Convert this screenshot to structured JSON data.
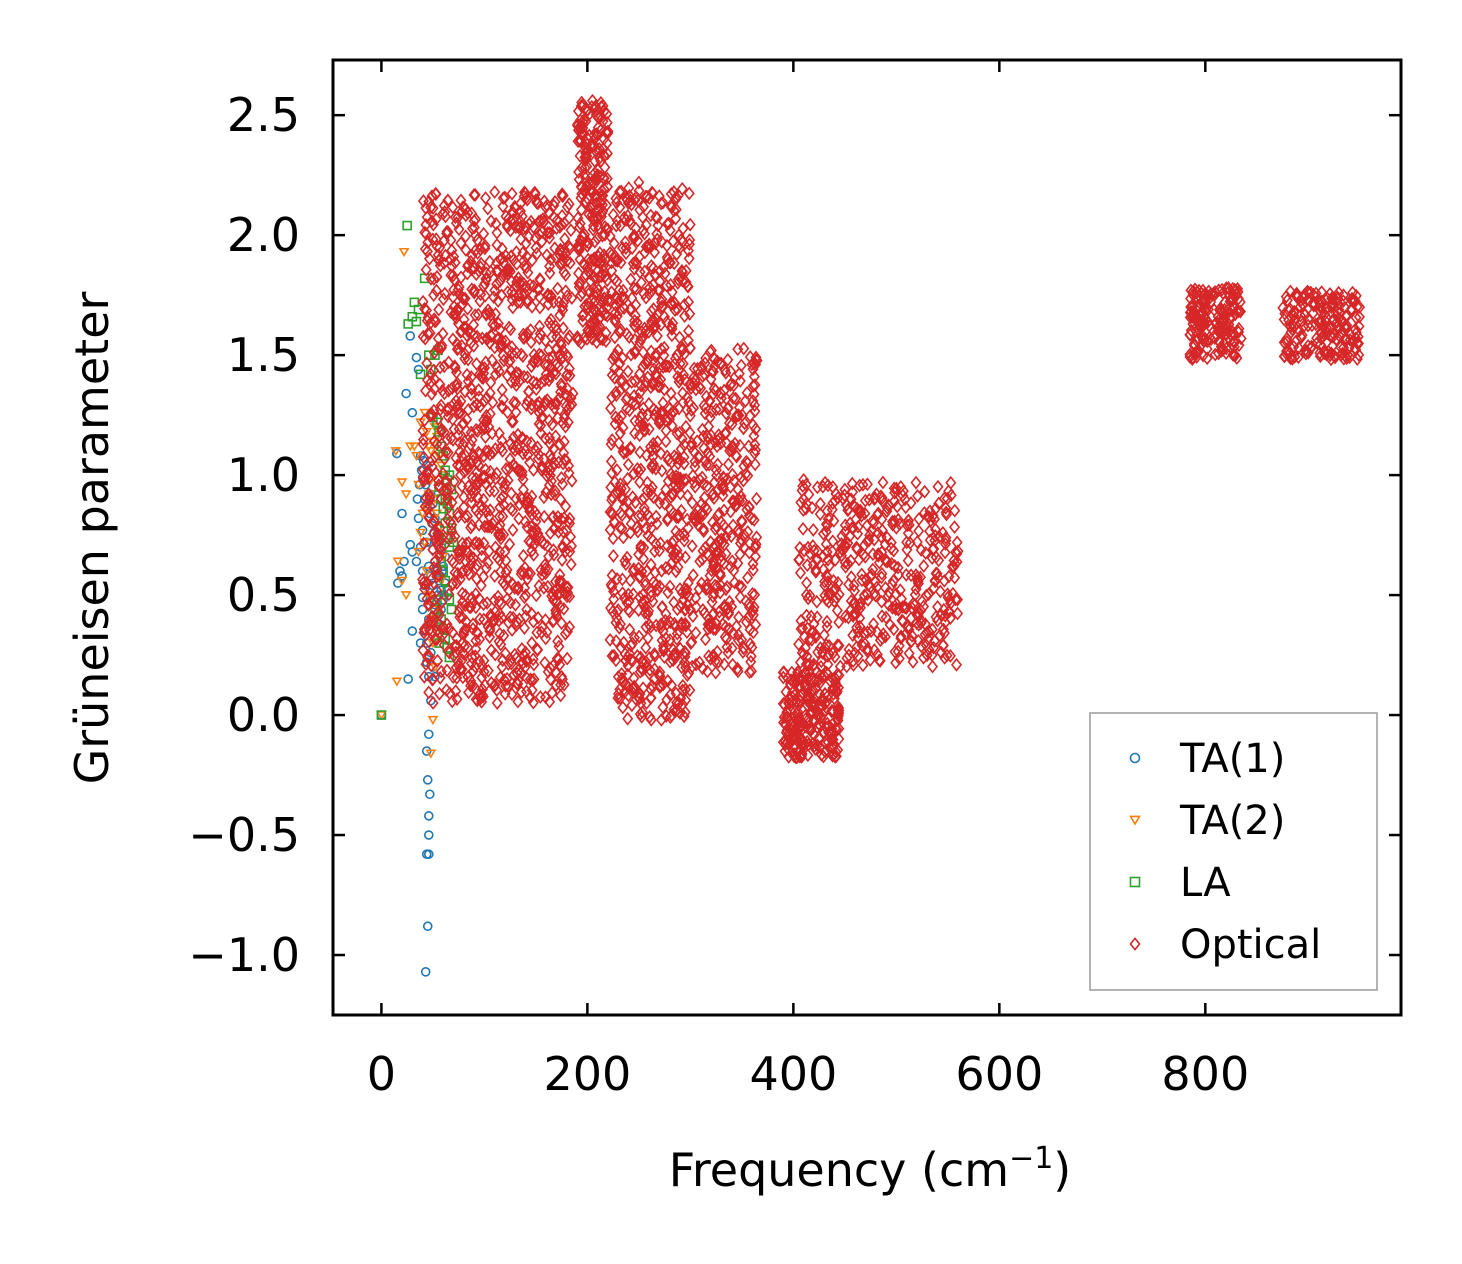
{
  "chart_data": {
    "type": "scatter",
    "title": "",
    "xlabel": "Frequency (cm",
    "xlabel_superscript": "−1",
    "xlabel_suffix": ")",
    "ylabel": "Grüneisen parameter",
    "xlim": [
      -47,
      990
    ],
    "ylim": [
      -1.25,
      2.73
    ],
    "grid": false,
    "legend_position": "lower-right",
    "xticks": [
      0,
      200,
      400,
      600,
      800
    ],
    "xtick_labels": [
      "0",
      "200",
      "400",
      "600",
      "800"
    ],
    "yticks": [
      -1.0,
      -0.5,
      0.0,
      0.5,
      1.0,
      1.5,
      2.0,
      2.5
    ],
    "ytick_labels": [
      "−1.0",
      "−0.5",
      "0.0",
      "0.5",
      "1.0",
      "1.5",
      "2.0",
      "2.5"
    ],
    "series": [
      {
        "name": "TA(1)",
        "marker": "circle",
        "color": "#1f77b4",
        "points": [
          [
            0,
            0
          ],
          [
            15,
            1.09
          ],
          [
            20,
            0.84
          ],
          [
            22,
            0.64
          ],
          [
            16,
            0.55
          ],
          [
            18,
            0.6
          ],
          [
            20,
            0.58
          ],
          [
            24,
            1.34
          ],
          [
            28,
            1.58
          ],
          [
            30,
            1.26
          ],
          [
            34,
            1.49
          ],
          [
            36,
            1.44
          ],
          [
            28,
            0.71
          ],
          [
            30,
            0.68
          ],
          [
            34,
            0.64
          ],
          [
            38,
            1.08
          ],
          [
            40,
            0.99
          ],
          [
            40,
            0.77
          ],
          [
            40,
            0.6
          ],
          [
            40,
            0.49
          ],
          [
            42,
            0.35
          ],
          [
            44,
            0.22
          ],
          [
            46,
            0.16
          ],
          [
            48,
            0.06
          ],
          [
            46,
            -0.08
          ],
          [
            44,
            -0.15
          ],
          [
            45,
            -0.27
          ],
          [
            47,
            -0.33
          ],
          [
            46,
            -0.42
          ],
          [
            46,
            -0.5
          ],
          [
            44,
            -0.58
          ],
          [
            46,
            -0.58
          ],
          [
            45,
            -0.88
          ],
          [
            43,
            -1.07
          ],
          [
            26,
            0.15
          ],
          [
            30,
            0.35
          ],
          [
            36,
            0.82
          ],
          [
            38,
            0.7
          ],
          [
            42,
            0.9
          ],
          [
            44,
            1.04
          ],
          [
            48,
            0.92
          ],
          [
            50,
            0.88
          ],
          [
            52,
            0.82
          ],
          [
            54,
            0.78
          ],
          [
            56,
            0.74
          ],
          [
            58,
            0.7
          ],
          [
            50,
            0.69
          ],
          [
            52,
            0.64
          ],
          [
            54,
            0.6
          ],
          [
            56,
            0.56
          ],
          [
            58,
            0.52
          ],
          [
            60,
            0.48
          ],
          [
            62,
            0.55
          ],
          [
            48,
            0.58
          ],
          [
            50,
            0.54
          ],
          [
            52,
            0.46
          ],
          [
            54,
            0.42
          ],
          [
            56,
            0.38
          ],
          [
            58,
            0.44
          ],
          [
            60,
            0.62
          ],
          [
            62,
            0.66
          ],
          [
            46,
            0.4
          ],
          [
            44,
            0.3
          ],
          [
            48,
            0.26
          ],
          [
            50,
            0.2
          ],
          [
            52,
            0.16
          ],
          [
            44,
            0.72
          ],
          [
            46,
            0.62
          ],
          [
            42,
            0.54
          ],
          [
            40,
            0.44
          ],
          [
            38,
            0.3
          ],
          [
            55,
            0.5
          ],
          [
            57,
            0.58
          ],
          [
            59,
            0.6
          ],
          [
            61,
            0.5
          ],
          [
            53,
            0.72
          ],
          [
            51,
            0.76
          ],
          [
            49,
            0.8
          ],
          [
            47,
            0.84
          ],
          [
            45,
            0.88
          ],
          [
            43,
            0.96
          ],
          [
            41,
            1.06
          ],
          [
            39,
            1.02
          ],
          [
            37,
            0.96
          ],
          [
            35,
            0.9
          ]
        ]
      },
      {
        "name": "TA(2)",
        "marker": "triangle-down",
        "color": "#ff7f0e",
        "points": [
          [
            0,
            0
          ],
          [
            22,
            1.93
          ],
          [
            14,
            1.1
          ],
          [
            20,
            0.97
          ],
          [
            24,
            0.92
          ],
          [
            28,
            1.12
          ],
          [
            32,
            1.12
          ],
          [
            34,
            1.08
          ],
          [
            36,
            0.96
          ],
          [
            38,
            1.22
          ],
          [
            42,
            1.26
          ],
          [
            44,
            1.18
          ],
          [
            46,
            1.12
          ],
          [
            48,
            1.1
          ],
          [
            50,
            1.14
          ],
          [
            52,
            1.2
          ],
          [
            54,
            1.16
          ],
          [
            56,
            1.08
          ],
          [
            58,
            1.04
          ],
          [
            60,
            1.0
          ],
          [
            16,
            0.64
          ],
          [
            20,
            0.56
          ],
          [
            24,
            0.5
          ],
          [
            15,
            0.14
          ],
          [
            42,
            0.72
          ],
          [
            44,
            0.6
          ],
          [
            46,
            0.5
          ],
          [
            48,
            0.4
          ],
          [
            50,
            0.3
          ],
          [
            52,
            0.2
          ],
          [
            50,
            -0.02
          ],
          [
            48,
            -0.16
          ],
          [
            54,
            0.34
          ],
          [
            56,
            0.44
          ],
          [
            58,
            0.56
          ],
          [
            60,
            0.66
          ],
          [
            40,
            0.84
          ],
          [
            38,
            0.76
          ],
          [
            36,
            0.68
          ],
          [
            44,
            0.86
          ],
          [
            46,
            0.92
          ],
          [
            48,
            0.98
          ],
          [
            52,
            0.9
          ],
          [
            54,
            0.84
          ],
          [
            56,
            0.78
          ],
          [
            58,
            0.72
          ]
        ]
      },
      {
        "name": "LA",
        "marker": "square",
        "color": "#2ca02c",
        "points": [
          [
            0,
            0
          ],
          [
            25,
            2.04
          ],
          [
            42,
            1.82
          ],
          [
            32,
            1.72
          ],
          [
            36,
            1.69
          ],
          [
            30,
            1.66
          ],
          [
            34,
            1.64
          ],
          [
            26,
            1.63
          ],
          [
            46,
            1.5
          ],
          [
            52,
            1.5
          ],
          [
            38,
            1.42
          ],
          [
            48,
            1.44
          ],
          [
            55,
            1.52
          ],
          [
            50,
            1.24
          ],
          [
            54,
            1.22
          ],
          [
            56,
            1.18
          ],
          [
            58,
            1.12
          ],
          [
            60,
            1.08
          ],
          [
            62,
            1.02
          ],
          [
            64,
            0.98
          ],
          [
            56,
            0.95
          ],
          [
            58,
            0.9
          ],
          [
            60,
            0.86
          ],
          [
            62,
            0.8
          ],
          [
            64,
            0.74
          ],
          [
            66,
            0.7
          ],
          [
            58,
            0.64
          ],
          [
            60,
            0.6
          ],
          [
            62,
            0.56
          ],
          [
            64,
            0.52
          ],
          [
            66,
            0.48
          ],
          [
            68,
            0.44
          ],
          [
            58,
            0.4
          ],
          [
            60,
            0.36
          ],
          [
            62,
            0.32
          ],
          [
            64,
            0.28
          ],
          [
            66,
            0.24
          ],
          [
            54,
            0.48
          ],
          [
            52,
            0.44
          ],
          [
            56,
            0.3
          ],
          [
            62,
            0.9
          ],
          [
            64,
            0.88
          ],
          [
            66,
            0.84
          ],
          [
            68,
            0.78
          ],
          [
            70,
            0.72
          ],
          [
            66,
            1.0
          ],
          [
            68,
            0.94
          ]
        ]
      },
      {
        "name": "Optical",
        "marker": "diamond",
        "color": "#d62728",
        "clusters": [
          {
            "x": [
              40,
              185
            ],
            "gamma": [
              0.05,
              2.18
            ],
            "count": 1300
          },
          {
            "x": [
              190,
              220
            ],
            "gamma": [
              1.55,
              2.56
            ],
            "count": 260
          },
          {
            "x": [
              222,
              300
            ],
            "gamma": [
              -0.02,
              2.2
            ],
            "count": 750
          },
          {
            "x": [
              300,
              365
            ],
            "gamma": [
              0.17,
              1.53
            ],
            "count": 380
          },
          {
            "x": [
              390,
              445
            ],
            "gamma": [
              -0.18,
              0.18
            ],
            "count": 240
          },
          {
            "x": [
              405,
              560
            ],
            "gamma": [
              0.2,
              0.97
            ],
            "count": 480
          },
          {
            "x": [
              785,
              835
            ],
            "gamma": [
              1.48,
              1.78
            ],
            "count": 180
          },
          {
            "x": [
              875,
              950
            ],
            "gamma": [
              1.48,
              1.77
            ],
            "count": 200
          }
        ],
        "outliers": [
          [
            205,
            2.56
          ],
          [
            110,
            2.18
          ],
          [
            118,
            2.12
          ],
          [
            135,
            2.1
          ],
          [
            180,
            1.5
          ],
          [
            160,
            1.42
          ],
          [
            186,
            1.34
          ],
          [
            250,
            2.22
          ],
          [
            258,
            2.16
          ],
          [
            272,
            1.72
          ],
          [
            292,
            1.52
          ],
          [
            320,
            1.4
          ],
          [
            323,
            1.36
          ],
          [
            410,
            0.98
          ],
          [
            420,
            0.38
          ],
          [
            432,
            0.48
          ],
          [
            440,
            0.52
          ],
          [
            500,
            0.78
          ],
          [
            510,
            0.72
          ],
          [
            262,
            -0.02
          ],
          [
            237,
            0.13
          ],
          [
            450,
            0.94
          ],
          [
            456,
            0.9
          ]
        ]
      }
    ]
  }
}
